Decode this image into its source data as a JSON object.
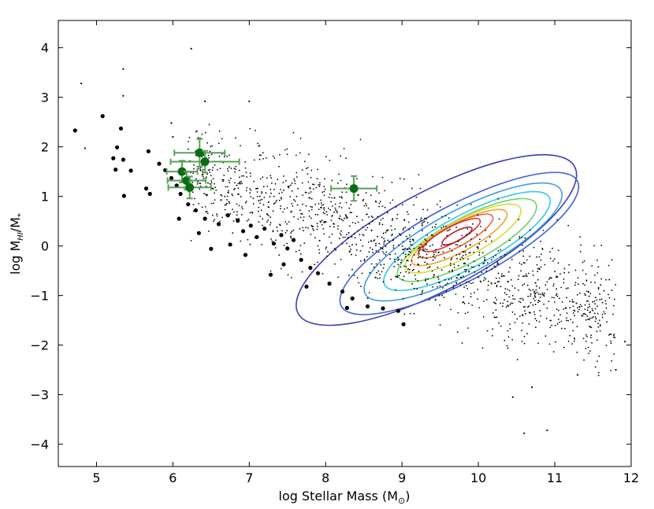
{
  "chart_data": {
    "type": "scatter",
    "title": "",
    "xlabel": "log Stellar Mass (M",
    "xlabel_sub": "⊙",
    "xlabel_close": ")",
    "ylabel": "log M",
    "ylabel_sub": "HI",
    "ylabel_mid": "/M",
    "ylabel_sub2": "*",
    "xlim": [
      4.5,
      12
    ],
    "ylim": [
      -4.45,
      4.55
    ],
    "xticks": [
      5,
      6,
      7,
      8,
      9,
      10,
      11,
      12
    ],
    "yticks": [
      -4,
      -3,
      -2,
      -1,
      0,
      1,
      2,
      3,
      4
    ],
    "ytick_labels": [
      "−4",
      "−3",
      "−2",
      "−1",
      "0",
      "1",
      "2",
      "3",
      "4"
    ],
    "grid": false,
    "colors": {
      "small_points": "#000000",
      "large_points": "#000000",
      "highlight_points": "#0b6b14",
      "highlight_errorbars": "#5aa05a"
    },
    "series": [
      {
        "kind": "large_black_points",
        "points": [
          [
            4.72,
            2.33
          ],
          [
            5.08,
            2.62
          ],
          [
            5.32,
            2.37
          ],
          [
            5.27,
            1.99
          ],
          [
            5.35,
            1.74
          ],
          [
            5.22,
            1.77
          ],
          [
            5.25,
            1.54
          ],
          [
            5.36,
            1.01
          ],
          [
            5.45,
            1.52
          ],
          [
            5.68,
            1.91
          ],
          [
            5.65,
            1.16
          ],
          [
            5.7,
            1.05
          ],
          [
            5.82,
            1.66
          ],
          [
            5.9,
            1.53
          ],
          [
            5.98,
            1.37
          ],
          [
            6.05,
            1.22
          ],
          [
            6.1,
            1.05
          ],
          [
            6.2,
            0.84
          ],
          [
            6.08,
            0.55
          ],
          [
            6.3,
            0.72
          ],
          [
            6.42,
            0.55
          ],
          [
            6.34,
            0.26
          ],
          [
            6.6,
            0.44
          ],
          [
            6.72,
            0.62
          ],
          [
            6.85,
            0.51
          ],
          [
            6.92,
            0.3
          ],
          [
            7.02,
            0.41
          ],
          [
            7.1,
            0.18
          ],
          [
            7.2,
            0.35
          ],
          [
            7.32,
            0.05
          ],
          [
            7.42,
            0.22
          ],
          [
            7.5,
            -0.05
          ],
          [
            7.58,
            0.12
          ],
          [
            7.68,
            -0.28
          ],
          [
            7.8,
            -0.44
          ],
          [
            7.9,
            -0.55
          ],
          [
            8.05,
            -0.76
          ],
          [
            8.22,
            -0.92
          ],
          [
            8.35,
            -1.06
          ],
          [
            8.55,
            -1.22
          ],
          [
            8.75,
            -1.26
          ],
          [
            8.95,
            -1.31
          ],
          [
            9.02,
            -1.58
          ],
          [
            8.28,
            -1.25
          ],
          [
            7.75,
            -0.82
          ],
          [
            7.28,
            -0.58
          ],
          [
            6.95,
            -0.18
          ],
          [
            6.5,
            -0.06
          ],
          [
            6.75,
            0.03
          ],
          [
            7.45,
            -0.37
          ]
        ]
      },
      {
        "kind": "green_points_with_errorbars",
        "points": [
          [
            6.35,
            1.88,
            0.33,
            0.28
          ],
          [
            6.42,
            1.7,
            0.45,
            0.22
          ],
          [
            6.12,
            1.5,
            0.2,
            0.22
          ],
          [
            6.18,
            1.32,
            0.25,
            0.18
          ],
          [
            6.22,
            1.18,
            0.28,
            0.22
          ],
          [
            8.37,
            1.16,
            0.3,
            0.25
          ]
        ]
      },
      {
        "kind": "density_contours",
        "levels": [
          {
            "color": "#3b3fb5",
            "center": [
              9.45,
              0.12
            ],
            "rx": 2.05,
            "ry": 0.62,
            "rot_deg": -28
          },
          {
            "color": "#4060d8",
            "center": [
              9.75,
              0.05
            ],
            "rx": 1.75,
            "ry": 0.48,
            "rot_deg": -28
          },
          {
            "color": "#3f9de0",
            "center": [
              9.8,
              0.08
            ],
            "rx": 1.45,
            "ry": 0.4,
            "rot_deg": -28
          },
          {
            "color": "#36c9e3",
            "center": [
              9.85,
              0.1
            ],
            "rx": 1.22,
            "ry": 0.33,
            "rot_deg": -28
          },
          {
            "color": "#6fd36a",
            "center": [
              9.85,
              0.12
            ],
            "rx": 1.02,
            "ry": 0.28,
            "rot_deg": -28
          },
          {
            "color": "#d8dc34",
            "center": [
              9.8,
              0.15
            ],
            "rx": 0.85,
            "ry": 0.23,
            "rot_deg": -28
          },
          {
            "color": "#f2a52e",
            "center": [
              9.75,
              0.17
            ],
            "rx": 0.7,
            "ry": 0.18,
            "rot_deg": -28
          },
          {
            "color": "#ea6a34",
            "center": [
              9.7,
              0.2
            ],
            "rx": 0.55,
            "ry": 0.14,
            "rot_deg": -28
          },
          {
            "color": "#d93030",
            "center": [
              9.65,
              0.22
            ],
            "rx": 0.42,
            "ry": 0.1,
            "rot_deg": -28
          },
          {
            "color": "#b51b2b",
            "center": [
              9.72,
              0.2
            ],
            "rx": 0.22,
            "ry": 0.06,
            "rot_deg": -28
          }
        ]
      }
    ]
  }
}
